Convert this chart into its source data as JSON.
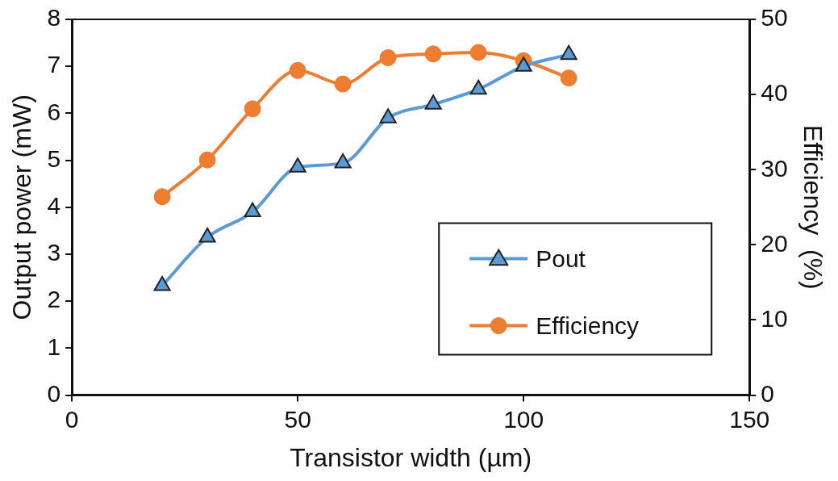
{
  "chart_data": {
    "type": "line",
    "xlabel": "Transistor width (µm)",
    "ylabel": "Output power (mW)",
    "y2label": "Efficiency  (%)",
    "x": [
      20,
      30,
      40,
      50,
      60,
      70,
      80,
      90,
      100,
      110
    ],
    "series": [
      {
        "name": "Pout",
        "color": "#5b9bd5",
        "marker": "triangle",
        "values": [
          2.33,
          3.36,
          3.9,
          4.85,
          4.94,
          5.9,
          6.19,
          6.51,
          7.0,
          7.25
        ]
      },
      {
        "name": "Efficiency",
        "color": "#ed7d31",
        "marker": "circle",
        "axis": "y2",
        "values": [
          26.4,
          31.3,
          38.1,
          43.2,
          41.4,
          44.9,
          45.4,
          45.6,
          44.5,
          42.2
        ]
      }
    ],
    "xlim": [
      0,
      150
    ],
    "xticks": [
      0,
      50,
      100,
      150
    ],
    "ylim": [
      0,
      8
    ],
    "yticks": [
      0,
      1,
      2,
      3,
      4,
      5,
      6,
      7,
      8
    ],
    "y2lim": [
      0,
      50
    ],
    "y2ticks": [
      0,
      10,
      20,
      30,
      40,
      50
    ],
    "grid": false,
    "legend": "bottom right"
  }
}
